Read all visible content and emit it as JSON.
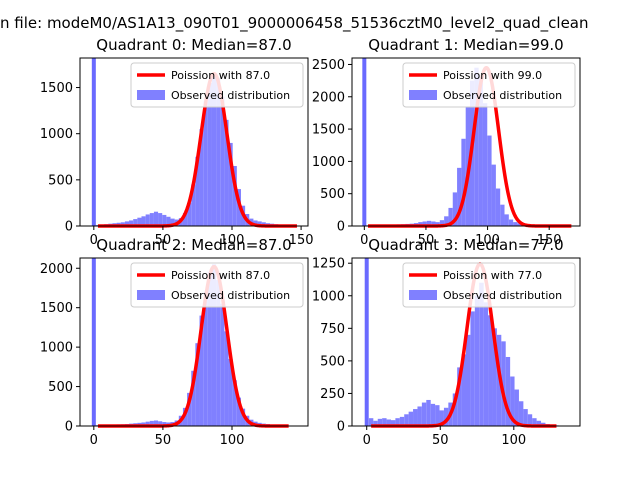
{
  "page_title": "n file: modeM0/AS1A13_090T01_9000006458_51536cztM0_level2_quad_clean",
  "colors": {
    "poisson": "#ff0000",
    "observed": "#8080ff",
    "outlier": "#6a6aff"
  },
  "legend": {
    "placement": "top-right"
  },
  "chart_data": [
    {
      "type": "bar",
      "title": "Quadrant 0: Median=87.0",
      "xlabel": "",
      "ylabel": "",
      "xlim": [
        -10,
        155
      ],
      "ylim": [
        0,
        1820
      ],
      "xticks": [
        0,
        50,
        100,
        150
      ],
      "yticks": [
        0,
        500,
        1000,
        1500
      ],
      "bin_width": 3,
      "outlier_bar": {
        "x": 0,
        "value": 1820
      },
      "observed": {
        "name": "Observed distribution",
        "x": [
          3,
          6,
          9,
          12,
          15,
          18,
          21,
          24,
          27,
          30,
          33,
          36,
          39,
          42,
          45,
          48,
          51,
          54,
          57,
          60,
          63,
          66,
          69,
          72,
          75,
          78,
          81,
          84,
          87,
          90,
          93,
          96,
          99,
          102,
          105,
          108,
          111,
          114,
          117,
          120,
          123,
          126,
          129,
          132,
          135,
          138,
          141,
          144,
          147
        ],
        "values": [
          10,
          15,
          20,
          25,
          30,
          35,
          40,
          50,
          60,
          75,
          90,
          105,
          125,
          140,
          155,
          140,
          120,
          100,
          80,
          70,
          85,
          140,
          250,
          450,
          750,
          1050,
          1350,
          1550,
          1650,
          1600,
          1400,
          1150,
          900,
          650,
          400,
          220,
          130,
          80,
          60,
          50,
          40,
          30,
          25,
          20,
          15,
          10,
          8,
          5,
          3
        ]
      },
      "poisson": {
        "name": "Poission with 87.0",
        "mu": 87.0,
        "peak": 1650
      }
    },
    {
      "type": "bar",
      "title": "Quadrant 1: Median=99.0",
      "xlabel": "",
      "ylabel": "",
      "xlim": [
        -10,
        175
      ],
      "ylim": [
        0,
        2600
      ],
      "xticks": [
        0,
        50,
        100,
        150
      ],
      "yticks": [
        0,
        500,
        1000,
        1500,
        2000,
        2500
      ],
      "bin_width": 3.5,
      "outlier_bar": {
        "x": 0,
        "value": 2600
      },
      "observed": {
        "name": "Observed distribution",
        "x": [
          3.5,
          7,
          10.5,
          14,
          17.5,
          21,
          24.5,
          28,
          31.5,
          35,
          38.5,
          42,
          45.5,
          49,
          52.5,
          56,
          59.5,
          63,
          66.5,
          70,
          73.5,
          77,
          80.5,
          84,
          87.5,
          91,
          94.5,
          98,
          101.5,
          105,
          108.5,
          112,
          115.5,
          119,
          122.5,
          126,
          129.5,
          133,
          136.5,
          140,
          143.5,
          147,
          150.5,
          154,
          157.5,
          161,
          164.5,
          168
        ],
        "values": [
          10,
          12,
          14,
          16,
          18,
          20,
          22,
          25,
          28,
          32,
          36,
          45,
          60,
          70,
          80,
          70,
          60,
          90,
          150,
          280,
          520,
          900,
          1350,
          1850,
          2250,
          2450,
          2300,
          1900,
          1400,
          950,
          580,
          330,
          180,
          100,
          60,
          40,
          30,
          25,
          20,
          15,
          12,
          10,
          8,
          6,
          5,
          4,
          3,
          2
        ]
      },
      "poisson": {
        "name": "Poission with 99.0",
        "mu": 99.0,
        "peak": 2450
      }
    },
    {
      "type": "bar",
      "title": "Quadrant 2: Median=87.0",
      "xlabel": "",
      "ylabel": "",
      "xlim": [
        -10,
        155
      ],
      "ylim": [
        0,
        2130
      ],
      "xticks": [
        0,
        50,
        100
      ],
      "yticks": [
        0,
        500,
        1000,
        1500,
        2000
      ],
      "bin_width": 3,
      "outlier_bar": {
        "x": 0,
        "value": 2130
      },
      "observed": {
        "name": "Observed distribution",
        "x": [
          3,
          6,
          9,
          12,
          15,
          18,
          21,
          24,
          27,
          30,
          33,
          36,
          39,
          42,
          45,
          48,
          51,
          54,
          57,
          60,
          63,
          66,
          69,
          72,
          75,
          78,
          81,
          84,
          87,
          90,
          93,
          96,
          99,
          102,
          105,
          108,
          111,
          114,
          117,
          120,
          123,
          126,
          129,
          132,
          135,
          138,
          141
        ],
        "values": [
          10,
          12,
          14,
          16,
          18,
          20,
          22,
          25,
          30,
          35,
          40,
          45,
          55,
          65,
          70,
          60,
          50,
          45,
          50,
          70,
          130,
          230,
          420,
          700,
          1050,
          1400,
          1700,
          1950,
          2050,
          1850,
          1550,
          1200,
          850,
          580,
          360,
          220,
          130,
          80,
          55,
          40,
          30,
          25,
          18,
          12,
          8,
          5,
          3
        ]
      },
      "poisson": {
        "name": "Poission with 87.0",
        "mu": 87.0,
        "peak": 2020
      }
    },
    {
      "type": "bar",
      "title": "Quadrant 3: Median=77.0",
      "xlabel": "",
      "ylabel": "",
      "xlim": [
        -10,
        145
      ],
      "ylim": [
        0,
        1290
      ],
      "xticks": [
        0,
        50,
        100
      ],
      "yticks": [
        0,
        250,
        500,
        750,
        1000,
        1250
      ],
      "bin_width": 3,
      "outlier_bar": {
        "x": 0,
        "value": 1290
      },
      "observed": {
        "name": "Observed distribution",
        "x": [
          3,
          6,
          9,
          12,
          15,
          18,
          21,
          24,
          27,
          30,
          33,
          36,
          39,
          42,
          45,
          48,
          51,
          54,
          57,
          60,
          63,
          66,
          69,
          72,
          75,
          78,
          81,
          84,
          87,
          90,
          93,
          96,
          99,
          102,
          105,
          108,
          111,
          114,
          117,
          120,
          123,
          126,
          129
        ],
        "values": [
          60,
          40,
          55,
          60,
          50,
          45,
          60,
          70,
          90,
          110,
          130,
          150,
          180,
          200,
          170,
          160,
          120,
          140,
          180,
          250,
          450,
          550,
          700,
          880,
          1000,
          1100,
          950,
          850,
          750,
          700,
          650,
          530,
          380,
          280,
          190,
          130,
          90,
          60,
          40,
          25,
          15,
          10,
          5
        ]
      },
      "poisson": {
        "name": "Poission with 77.0",
        "mu": 77.0,
        "peak": 1245
      }
    }
  ]
}
